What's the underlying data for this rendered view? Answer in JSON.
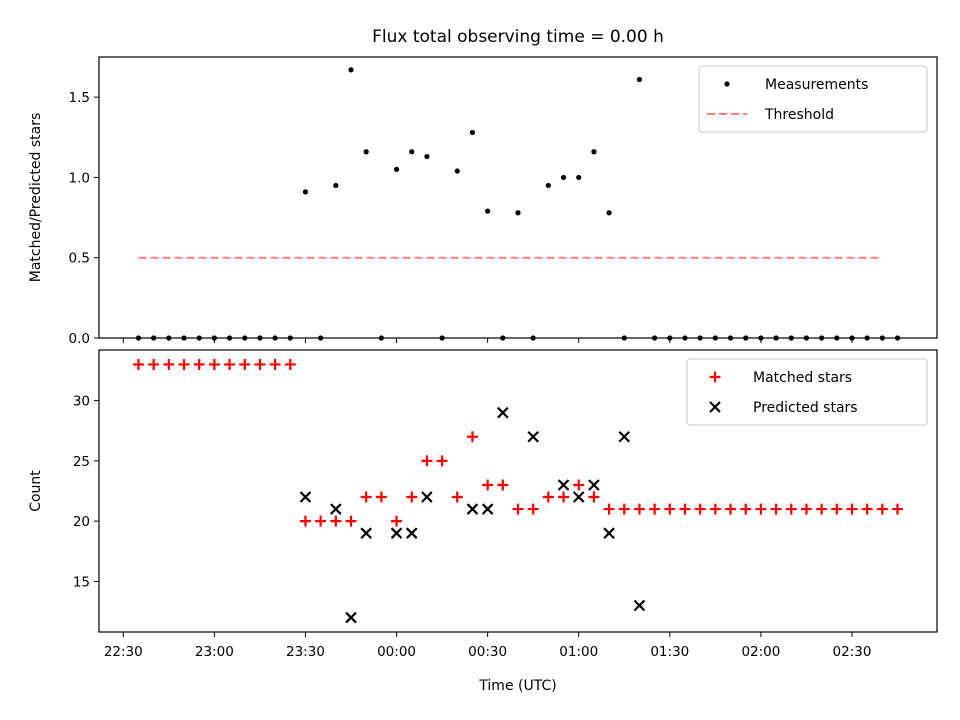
{
  "figure": {
    "title": "Flux total observing time = 0.00 h"
  },
  "chart_data": [
    {
      "type": "scatter",
      "panel": "top",
      "ylabel": "Matched/Predicted stars",
      "xlabel": "",
      "x_unit": "minutes since 22:30 UTC",
      "xlim": [
        -8,
        268
      ],
      "ylim": [
        0,
        1.75
      ],
      "yticks": [
        0.0,
        0.5,
        1.0,
        1.5
      ],
      "ytick_labels": [
        "0.0",
        "0.5",
        "1.0",
        "1.5"
      ],
      "grid": false,
      "legend_placement": "top-right",
      "series": [
        {
          "name": "Measurements",
          "kind": "points",
          "color": "#000000",
          "x": [
            5,
            10,
            15,
            20,
            25,
            30,
            35,
            40,
            45,
            50,
            55,
            60,
            65,
            70,
            75,
            80,
            85,
            90,
            95,
            100,
            105,
            110,
            115,
            120,
            125,
            130,
            135,
            140,
            145,
            150,
            155,
            160,
            165,
            170,
            175,
            180,
            185,
            190,
            195,
            200,
            205,
            210,
            215,
            220,
            225,
            230,
            235,
            240,
            245,
            250,
            255
          ],
          "y": [
            0,
            0,
            0,
            0,
            0,
            0,
            0,
            0,
            0,
            0,
            0,
            0.91,
            0,
            0.95,
            1.67,
            1.16,
            0,
            1.05,
            1.16,
            1.13,
            0,
            1.04,
            1.28,
            0.79,
            0,
            0.78,
            0,
            0.95,
            1.0,
            1.0,
            1.16,
            0.78,
            0,
            1.61,
            0,
            0,
            0,
            0,
            0,
            0,
            0,
            0,
            0,
            0,
            0,
            0,
            0,
            0,
            0,
            0,
            0
          ]
        },
        {
          "name": "Threshold",
          "kind": "dashed-line",
          "color": "#ff7f7f",
          "x": [
            5,
            250
          ],
          "y": [
            0.5,
            0.5
          ]
        }
      ]
    },
    {
      "type": "scatter",
      "panel": "bottom",
      "ylabel": "Count",
      "xlabel": "Time (UTC)",
      "x_unit": "minutes since 22:30 UTC",
      "xlim": [
        -8,
        268
      ],
      "ylim": [
        10.8,
        34.2
      ],
      "yticks": [
        15,
        20,
        25,
        30
      ],
      "ytick_labels": [
        "15",
        "20",
        "25",
        "30"
      ],
      "xticks": [
        0,
        30,
        60,
        90,
        120,
        150,
        180,
        210,
        240,
        270
      ],
      "xtick_labels": [
        "22:30",
        "23:00",
        "23:30",
        "00:00",
        "00:30",
        "01:00",
        "01:30",
        "02:00",
        "02:30"
      ],
      "grid": false,
      "legend_placement": "top-right",
      "series": [
        {
          "name": "Matched stars",
          "kind": "plus",
          "color": "#ff0000",
          "x": [
            5,
            10,
            15,
            20,
            25,
            30,
            35,
            40,
            45,
            50,
            55,
            60,
            65,
            70,
            75,
            80,
            85,
            90,
            95,
            100,
            105,
            110,
            115,
            120,
            125,
            130,
            135,
            140,
            145,
            150,
            155,
            160,
            165,
            170,
            175,
            180,
            185,
            190,
            195,
            200,
            205,
            210,
            215,
            220,
            225,
            230,
            235,
            240,
            245,
            250,
            255
          ],
          "y": [
            33,
            33,
            33,
            33,
            33,
            33,
            33,
            33,
            33,
            33,
            33,
            20,
            20,
            20,
            20,
            22,
            22,
            20,
            22,
            25,
            25,
            22,
            27,
            23,
            23,
            21,
            21,
            22,
            22,
            23,
            22,
            21,
            21,
            21,
            21,
            21,
            21,
            21,
            21,
            21,
            21,
            21,
            21,
            21,
            21,
            21,
            21,
            21,
            21,
            21,
            21
          ]
        },
        {
          "name": "Predicted stars",
          "kind": "x",
          "color": "#000000",
          "x": [
            60,
            70,
            75,
            80,
            90,
            95,
            100,
            115,
            120,
            125,
            135,
            145,
            150,
            155,
            160,
            165,
            170
          ],
          "y": [
            22,
            21,
            12,
            19,
            19,
            19,
            22,
            21,
            21,
            29,
            27,
            23,
            22,
            23,
            19,
            27,
            13
          ]
        }
      ]
    }
  ]
}
